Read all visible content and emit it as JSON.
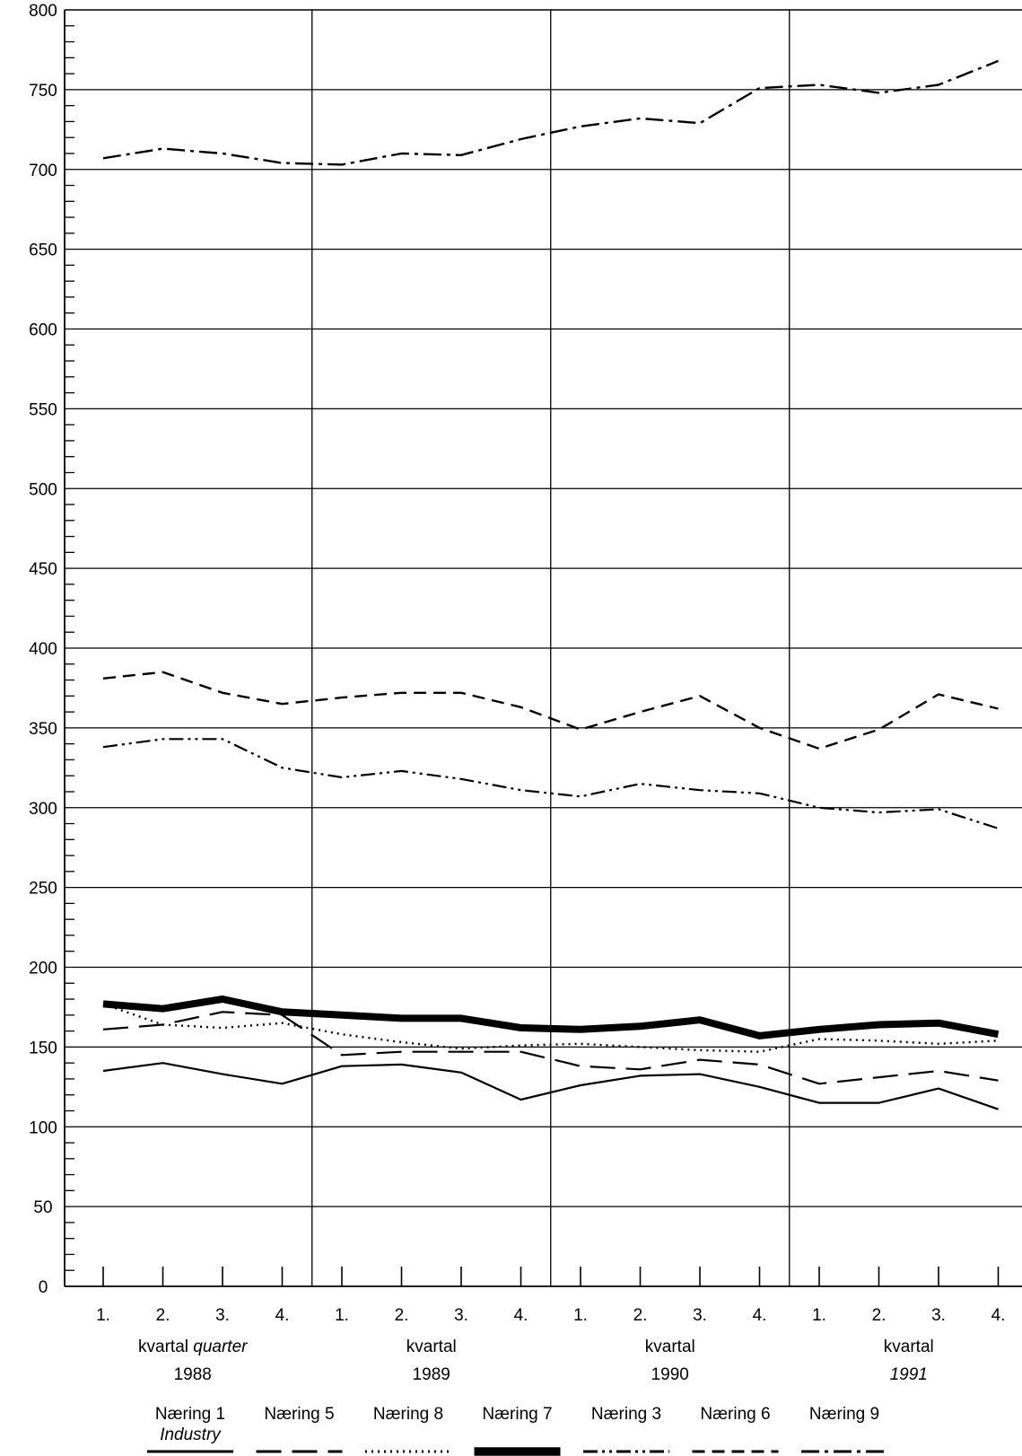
{
  "chart_data": {
    "type": "line",
    "title": "",
    "ylim": [
      0,
      800
    ],
    "y_ticks": [
      0,
      50,
      100,
      150,
      200,
      250,
      300,
      350,
      400,
      450,
      500,
      550,
      600,
      650,
      700,
      750,
      800
    ],
    "grid": true,
    "categories": [
      "1.",
      "2.",
      "3.",
      "4.",
      "1.",
      "2.",
      "3.",
      "4.",
      "1.",
      "2.",
      "3.",
      "4.",
      "1.",
      "2.",
      "3.",
      "4."
    ],
    "year_groups": [
      {
        "label": "kvartal",
        "label_en": "quarter",
        "year": "1988",
        "year_italic": false
      },
      {
        "label": "kvartal",
        "label_en": "",
        "year": "1989",
        "year_italic": false
      },
      {
        "label": "kvartal",
        "label_en": "",
        "year": "1990",
        "year_italic": false
      },
      {
        "label": "kvartal",
        "label_en": "",
        "year": "1991",
        "year_italic": true
      }
    ],
    "legend_placement": "bottom",
    "legend_sublabel": "Industry",
    "series": [
      {
        "name": "Næring 1",
        "style": "solid",
        "values": [
          135,
          140,
          133,
          127,
          138,
          139,
          134,
          117,
          126,
          132,
          133,
          125,
          115,
          115,
          124,
          111
        ]
      },
      {
        "name": "Næring 5",
        "style": "longdash",
        "values": [
          161,
          164,
          172,
          170,
          145,
          147,
          147,
          147,
          138,
          136,
          142,
          139,
          127,
          131,
          135,
          129
        ]
      },
      {
        "name": "Næring 8",
        "style": "dotted",
        "values": [
          177,
          164,
          162,
          165,
          158,
          153,
          149,
          151,
          152,
          150,
          148,
          147,
          155,
          154,
          152,
          154
        ]
      },
      {
        "name": "Næring 7",
        "style": "thick",
        "values": [
          177,
          174,
          180,
          172,
          170,
          168,
          168,
          162,
          161,
          163,
          167,
          157,
          161,
          164,
          165,
          158
        ]
      },
      {
        "name": "Næring 3",
        "style": "dashdotdot",
        "values": [
          338,
          343,
          343,
          325,
          319,
          323,
          318,
          311,
          307,
          315,
          311,
          309,
          300,
          297,
          299,
          287
        ]
      },
      {
        "name": "Næring 6",
        "style": "shortdash",
        "values": [
          381,
          385,
          372,
          365,
          369,
          372,
          372,
          363,
          349,
          360,
          370,
          350,
          337,
          349,
          371,
          362
        ]
      },
      {
        "name": "Næring 9",
        "style": "dashdot",
        "values": [
          707,
          713,
          710,
          704,
          703,
          710,
          709,
          719,
          727,
          732,
          729,
          751,
          753,
          748,
          753,
          768
        ]
      }
    ]
  }
}
